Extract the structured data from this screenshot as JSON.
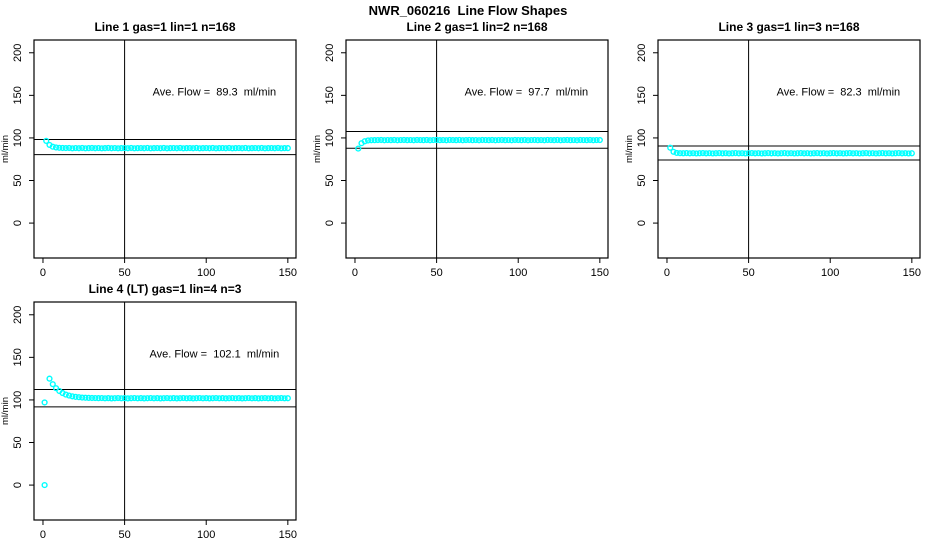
{
  "title": "NWR_060216  Line Flow Shapes",
  "colors": {
    "points": "#00FFFF",
    "axis": "#000000",
    "background": "#FFFFFF"
  },
  "chart_data": [
    {
      "type": "scatter",
      "title": "Line 1 gas=1 lin=1 n=168",
      "annotation": "Ave. Flow =  89.3  ml/min",
      "ave_flow_ml_min": 89.3,
      "xlabel": "",
      "ylabel": "ml/min",
      "xticks": [
        0,
        50,
        100,
        150
      ],
      "yticks": [
        0,
        50,
        100,
        150,
        200
      ],
      "xlim": [
        -5.5,
        155
      ],
      "ylim": [
        -41,
        215
      ],
      "vline_x": 50,
      "hlines": [
        98.2,
        80.4
      ],
      "point_color": "#00FFFF",
      "points": [
        [
          2,
          96.5
        ],
        [
          4,
          91.8
        ],
        [
          6,
          89.7
        ],
        [
          8,
          88.8
        ],
        [
          10,
          88.4
        ],
        [
          12,
          88.2
        ],
        [
          14,
          88.1
        ],
        [
          16,
          88.2
        ],
        [
          18,
          87.8
        ],
        [
          20,
          88.1
        ],
        [
          22,
          87.9
        ],
        [
          24,
          88.2
        ],
        [
          26,
          87.8
        ],
        [
          28,
          88.0
        ],
        [
          30,
          88.2
        ],
        [
          32,
          87.9
        ],
        [
          34,
          88.1
        ],
        [
          36,
          87.8
        ],
        [
          38,
          88.0
        ],
        [
          40,
          88.2
        ],
        [
          42,
          87.9
        ],
        [
          44,
          88.1
        ],
        [
          46,
          87.8
        ],
        [
          48,
          88.0
        ],
        [
          50,
          88.1
        ],
        [
          52,
          87.9
        ],
        [
          54,
          88.2
        ],
        [
          56,
          87.8
        ],
        [
          58,
          88.0
        ],
        [
          60,
          88.1
        ],
        [
          62,
          87.9
        ],
        [
          64,
          88.2
        ],
        [
          66,
          87.8
        ],
        [
          68,
          88.0
        ],
        [
          70,
          88.1
        ],
        [
          72,
          87.9
        ],
        [
          74,
          88.2
        ],
        [
          76,
          87.8
        ],
        [
          78,
          88.0
        ],
        [
          80,
          88.1
        ],
        [
          82,
          87.9
        ],
        [
          84,
          88.2
        ],
        [
          86,
          87.8
        ],
        [
          88,
          88.0
        ],
        [
          90,
          88.1
        ],
        [
          92,
          87.9
        ],
        [
          94,
          88.2
        ],
        [
          96,
          87.8
        ],
        [
          98,
          88.0
        ],
        [
          100,
          88.1
        ],
        [
          102,
          87.9
        ],
        [
          104,
          88.2
        ],
        [
          106,
          87.8
        ],
        [
          108,
          88.0
        ],
        [
          110,
          88.1
        ],
        [
          112,
          87.9
        ],
        [
          114,
          88.2
        ],
        [
          116,
          87.8
        ],
        [
          118,
          88.0
        ],
        [
          120,
          88.1
        ],
        [
          122,
          87.9
        ],
        [
          124,
          88.2
        ],
        [
          126,
          87.8
        ],
        [
          128,
          88.0
        ],
        [
          130,
          88.1
        ],
        [
          132,
          87.9
        ],
        [
          134,
          88.2
        ],
        [
          136,
          87.8
        ],
        [
          138,
          88.0
        ],
        [
          140,
          88.1
        ],
        [
          142,
          87.9
        ],
        [
          144,
          88.2
        ],
        [
          146,
          87.8
        ],
        [
          148,
          88.0
        ],
        [
          150,
          88.0
        ]
      ]
    },
    {
      "type": "scatter",
      "title": "Line 2 gas=1 lin=2 n=168",
      "annotation": "Ave. Flow =  97.7  ml/min",
      "ave_flow_ml_min": 97.7,
      "xlabel": "",
      "ylabel": "ml/min",
      "xticks": [
        0,
        50,
        100,
        150
      ],
      "yticks": [
        0,
        50,
        100,
        150,
        200
      ],
      "xlim": [
        -5.5,
        155
      ],
      "ylim": [
        -41,
        215
      ],
      "vline_x": 50,
      "hlines": [
        107.5,
        87.9
      ],
      "point_color": "#00FFFF",
      "points": [
        [
          2,
          87.5
        ],
        [
          4,
          93.8
        ],
        [
          6,
          96.1
        ],
        [
          8,
          97.0
        ],
        [
          10,
          97.3
        ],
        [
          12,
          97.4
        ],
        [
          14,
          97.5
        ],
        [
          16,
          97.6
        ],
        [
          18,
          97.3
        ],
        [
          20,
          97.5
        ],
        [
          22,
          97.4
        ],
        [
          24,
          97.6
        ],
        [
          26,
          97.3
        ],
        [
          28,
          97.5
        ],
        [
          30,
          97.6
        ],
        [
          32,
          97.4
        ],
        [
          34,
          97.5
        ],
        [
          36,
          97.3
        ],
        [
          38,
          97.6
        ],
        [
          40,
          97.5
        ],
        [
          42,
          97.4
        ],
        [
          44,
          97.6
        ],
        [
          46,
          97.3
        ],
        [
          48,
          97.5
        ],
        [
          50,
          97.6
        ],
        [
          52,
          97.4
        ],
        [
          54,
          97.5
        ],
        [
          56,
          97.3
        ],
        [
          58,
          97.6
        ],
        [
          60,
          97.5
        ],
        [
          62,
          97.4
        ],
        [
          64,
          97.6
        ],
        [
          66,
          97.3
        ],
        [
          68,
          97.5
        ],
        [
          70,
          97.6
        ],
        [
          72,
          97.4
        ],
        [
          74,
          97.5
        ],
        [
          76,
          97.3
        ],
        [
          78,
          97.6
        ],
        [
          80,
          97.5
        ],
        [
          82,
          97.4
        ],
        [
          84,
          97.6
        ],
        [
          86,
          97.3
        ],
        [
          88,
          97.5
        ],
        [
          90,
          97.6
        ],
        [
          92,
          97.4
        ],
        [
          94,
          97.5
        ],
        [
          96,
          97.3
        ],
        [
          98,
          97.6
        ],
        [
          100,
          97.5
        ],
        [
          102,
          97.4
        ],
        [
          104,
          97.6
        ],
        [
          106,
          97.3
        ],
        [
          108,
          97.5
        ],
        [
          110,
          97.6
        ],
        [
          112,
          97.4
        ],
        [
          114,
          97.5
        ],
        [
          116,
          97.3
        ],
        [
          118,
          97.6
        ],
        [
          120,
          97.5
        ],
        [
          122,
          97.4
        ],
        [
          124,
          97.6
        ],
        [
          126,
          97.3
        ],
        [
          128,
          97.5
        ],
        [
          130,
          97.6
        ],
        [
          132,
          97.4
        ],
        [
          134,
          97.5
        ],
        [
          136,
          97.3
        ],
        [
          138,
          97.6
        ],
        [
          140,
          97.5
        ],
        [
          142,
          97.4
        ],
        [
          144,
          97.6
        ],
        [
          146,
          97.3
        ],
        [
          148,
          97.5
        ],
        [
          150,
          97.5
        ]
      ]
    },
    {
      "type": "scatter",
      "title": "Line 3 gas=1 lin=3 n=168",
      "annotation": "Ave. Flow =  82.3  ml/min",
      "ave_flow_ml_min": 82.3,
      "xlabel": "",
      "ylabel": "ml/min",
      "xticks": [
        0,
        50,
        100,
        150
      ],
      "yticks": [
        0,
        50,
        100,
        150,
        200
      ],
      "xlim": [
        -5.5,
        155
      ],
      "ylim": [
        -41,
        215
      ],
      "vline_x": 50,
      "hlines": [
        90.5,
        74.1
      ],
      "point_color": "#00FFFF",
      "points": [
        [
          2,
          88.5
        ],
        [
          4,
          83.7
        ],
        [
          6,
          82.4
        ],
        [
          8,
          82.1
        ],
        [
          10,
          82.0
        ],
        [
          12,
          82.2
        ],
        [
          14,
          81.9
        ],
        [
          16,
          82.1
        ],
        [
          18,
          81.8
        ],
        [
          20,
          82.0
        ],
        [
          22,
          82.2
        ],
        [
          24,
          81.9
        ],
        [
          26,
          82.1
        ],
        [
          28,
          81.8
        ],
        [
          30,
          82.0
        ],
        [
          32,
          82.2
        ],
        [
          34,
          81.9
        ],
        [
          36,
          82.1
        ],
        [
          38,
          81.8
        ],
        [
          40,
          82.0
        ],
        [
          42,
          82.2
        ],
        [
          44,
          81.9
        ],
        [
          46,
          82.1
        ],
        [
          48,
          81.8
        ],
        [
          50,
          82.0
        ],
        [
          52,
          82.2
        ],
        [
          54,
          81.9
        ],
        [
          56,
          82.1
        ],
        [
          58,
          81.8
        ],
        [
          60,
          82.0
        ],
        [
          62,
          82.2
        ],
        [
          64,
          81.9
        ],
        [
          66,
          82.1
        ],
        [
          68,
          81.8
        ],
        [
          70,
          82.0
        ],
        [
          72,
          82.2
        ],
        [
          74,
          81.9
        ],
        [
          76,
          82.1
        ],
        [
          78,
          81.8
        ],
        [
          80,
          82.0
        ],
        [
          82,
          82.2
        ],
        [
          84,
          81.9
        ],
        [
          86,
          82.1
        ],
        [
          88,
          81.8
        ],
        [
          90,
          82.0
        ],
        [
          92,
          82.2
        ],
        [
          94,
          81.9
        ],
        [
          96,
          82.1
        ],
        [
          98,
          81.8
        ],
        [
          100,
          82.0
        ],
        [
          102,
          82.2
        ],
        [
          104,
          81.9
        ],
        [
          106,
          82.1
        ],
        [
          108,
          81.8
        ],
        [
          110,
          82.0
        ],
        [
          112,
          82.2
        ],
        [
          114,
          81.9
        ],
        [
          116,
          82.1
        ],
        [
          118,
          81.8
        ],
        [
          120,
          82.0
        ],
        [
          122,
          82.2
        ],
        [
          124,
          81.9
        ],
        [
          126,
          82.1
        ],
        [
          128,
          81.8
        ],
        [
          130,
          82.0
        ],
        [
          132,
          82.2
        ],
        [
          134,
          81.9
        ],
        [
          136,
          82.1
        ],
        [
          138,
          81.8
        ],
        [
          140,
          82.0
        ],
        [
          142,
          82.2
        ],
        [
          144,
          81.9
        ],
        [
          146,
          82.1
        ],
        [
          148,
          81.8
        ],
        [
          150,
          82.0
        ]
      ]
    },
    {
      "type": "scatter",
      "title": "Line 4 (LT) gas=1 lin=4 n=3",
      "annotation": "Ave. Flow =  102.1  ml/min",
      "ave_flow_ml_min": 102.1,
      "xlabel": "",
      "ylabel": "ml/min",
      "xticks": [
        0,
        50,
        100,
        150
      ],
      "yticks": [
        0,
        50,
        100,
        150,
        200
      ],
      "xlim": [
        -5.5,
        155
      ],
      "ylim": [
        -41,
        215
      ],
      "vline_x": 50,
      "hlines": [
        112.3,
        91.9
      ],
      "point_color": "#00FFFF",
      "outliers": [
        [
          1,
          97
        ],
        [
          1,
          0
        ]
      ],
      "points": [
        [
          4,
          125.0
        ],
        [
          6,
          118.5
        ],
        [
          8,
          113.8
        ],
        [
          10,
          110.5
        ],
        [
          12,
          108.1
        ],
        [
          14,
          106.3
        ],
        [
          16,
          105.1
        ],
        [
          18,
          104.2
        ],
        [
          20,
          103.6
        ],
        [
          22,
          103.2
        ],
        [
          24,
          102.8
        ],
        [
          26,
          102.6
        ],
        [
          28,
          102.4
        ],
        [
          30,
          102.3
        ],
        [
          32,
          102.2
        ],
        [
          34,
          102.1
        ],
        [
          36,
          102.2
        ],
        [
          38,
          101.9
        ],
        [
          40,
          102.1
        ],
        [
          42,
          101.8
        ],
        [
          44,
          102.0
        ],
        [
          46,
          102.2
        ],
        [
          48,
          101.9
        ],
        [
          50,
          102.1
        ],
        [
          52,
          101.8
        ],
        [
          54,
          102.0
        ],
        [
          56,
          102.2
        ],
        [
          58,
          101.9
        ],
        [
          60,
          102.1
        ],
        [
          62,
          101.8
        ],
        [
          64,
          102.0
        ],
        [
          66,
          102.2
        ],
        [
          68,
          101.9
        ],
        [
          70,
          102.1
        ],
        [
          72,
          101.8
        ],
        [
          74,
          102.0
        ],
        [
          76,
          102.2
        ],
        [
          78,
          101.9
        ],
        [
          80,
          102.1
        ],
        [
          82,
          101.8
        ],
        [
          84,
          102.0
        ],
        [
          86,
          102.2
        ],
        [
          88,
          101.9
        ],
        [
          90,
          102.1
        ],
        [
          92,
          101.8
        ],
        [
          94,
          102.0
        ],
        [
          96,
          102.2
        ],
        [
          98,
          101.9
        ],
        [
          100,
          102.1
        ],
        [
          102,
          101.8
        ],
        [
          104,
          102.0
        ],
        [
          106,
          102.2
        ],
        [
          108,
          101.9
        ],
        [
          110,
          102.1
        ],
        [
          112,
          101.8
        ],
        [
          114,
          102.0
        ],
        [
          116,
          102.2
        ],
        [
          118,
          101.9
        ],
        [
          120,
          102.1
        ],
        [
          122,
          101.8
        ],
        [
          124,
          102.0
        ],
        [
          126,
          102.2
        ],
        [
          128,
          101.9
        ],
        [
          130,
          102.1
        ],
        [
          132,
          101.8
        ],
        [
          134,
          102.0
        ],
        [
          136,
          102.2
        ],
        [
          138,
          101.9
        ],
        [
          140,
          102.1
        ],
        [
          142,
          101.8
        ],
        [
          144,
          102.0
        ],
        [
          146,
          102.2
        ],
        [
          148,
          101.9
        ],
        [
          150,
          102.0
        ]
      ]
    }
  ]
}
